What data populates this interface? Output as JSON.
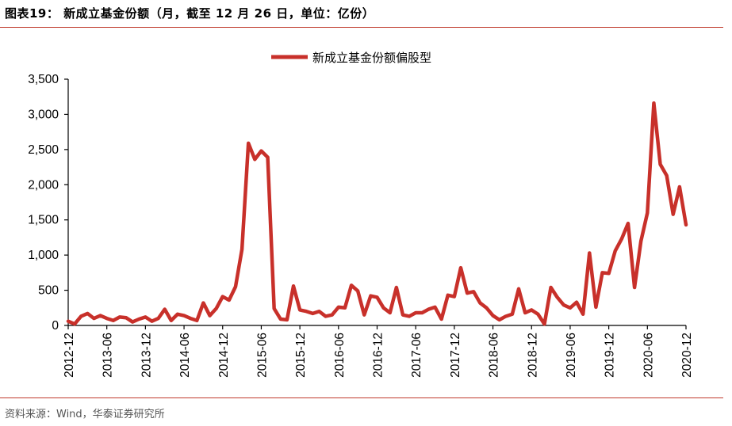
{
  "header": {
    "title": "图表19：  新成立基金份额（月，截至 12 月 26 日，单位：亿份）"
  },
  "footer": {
    "source": "资料来源：Wind，华泰证券研究所"
  },
  "colors": {
    "accent": "#c0312b",
    "series": "#c8302a"
  },
  "chart_data": {
    "type": "line",
    "title": "",
    "xlabel": "",
    "ylabel": "",
    "ylim": [
      0,
      3500
    ],
    "y_ticks": [
      0,
      500,
      1000,
      1500,
      2000,
      2500,
      3000,
      3500
    ],
    "y_tick_labels": [
      "0",
      "500",
      "1,000",
      "1,500",
      "2,000",
      "2,500",
      "3,000",
      "3,500"
    ],
    "x_tick_labels": [
      "2012-12",
      "2013-06",
      "2013-12",
      "2014-06",
      "2014-12",
      "2015-06",
      "2015-12",
      "2016-06",
      "2016-12",
      "2017-06",
      "2017-12",
      "2018-06",
      "2018-12",
      "2019-06",
      "2019-12",
      "2020-06",
      "2020-12"
    ],
    "legend_position": "top-center",
    "grid": false,
    "series": [
      {
        "name": "新成立基金份额偏股型",
        "x": [
          "2012-12",
          "2013-01",
          "2013-02",
          "2013-03",
          "2013-04",
          "2013-05",
          "2013-06",
          "2013-07",
          "2013-08",
          "2013-09",
          "2013-10",
          "2013-11",
          "2013-12",
          "2014-01",
          "2014-02",
          "2014-03",
          "2014-04",
          "2014-05",
          "2014-06",
          "2014-07",
          "2014-08",
          "2014-09",
          "2014-10",
          "2014-11",
          "2014-12",
          "2015-01",
          "2015-02",
          "2015-03",
          "2015-04",
          "2015-05",
          "2015-06",
          "2015-07",
          "2015-08",
          "2015-09",
          "2015-10",
          "2015-11",
          "2015-12",
          "2016-01",
          "2016-02",
          "2016-03",
          "2016-04",
          "2016-05",
          "2016-06",
          "2016-07",
          "2016-08",
          "2016-09",
          "2016-10",
          "2016-11",
          "2016-12",
          "2017-01",
          "2017-02",
          "2017-03",
          "2017-04",
          "2017-05",
          "2017-06",
          "2017-07",
          "2017-08",
          "2017-09",
          "2017-10",
          "2017-11",
          "2017-12",
          "2018-01",
          "2018-02",
          "2018-03",
          "2018-04",
          "2018-05",
          "2018-06",
          "2018-07",
          "2018-08",
          "2018-09",
          "2018-10",
          "2018-11",
          "2018-12",
          "2019-01",
          "2019-02",
          "2019-03",
          "2019-04",
          "2019-05",
          "2019-06",
          "2019-07",
          "2019-08",
          "2019-09",
          "2019-10",
          "2019-11",
          "2019-12",
          "2020-01",
          "2020-02",
          "2020-03",
          "2020-04",
          "2020-05",
          "2020-06",
          "2020-07",
          "2020-08",
          "2020-09",
          "2020-10",
          "2020-11",
          "2020-12"
        ],
        "values": [
          60,
          20,
          130,
          170,
          100,
          140,
          100,
          70,
          120,
          110,
          50,
          90,
          120,
          60,
          100,
          230,
          70,
          160,
          140,
          100,
          70,
          320,
          140,
          240,
          410,
          360,
          550,
          1080,
          2590,
          2360,
          2480,
          2390,
          240,
          90,
          80,
          560,
          220,
          200,
          170,
          200,
          130,
          150,
          260,
          250,
          570,
          490,
          150,
          420,
          400,
          250,
          180,
          540,
          150,
          130,
          180,
          180,
          230,
          260,
          90,
          430,
          410,
          820,
          460,
          480,
          320,
          250,
          140,
          80,
          130,
          160,
          520,
          180,
          220,
          160,
          20,
          540,
          400,
          290,
          250,
          330,
          160,
          1030,
          260,
          750,
          740,
          1060,
          1230,
          1450,
          540,
          1200,
          1600,
          3160,
          2290,
          2130,
          1580,
          1970,
          1430
        ]
      }
    ]
  }
}
